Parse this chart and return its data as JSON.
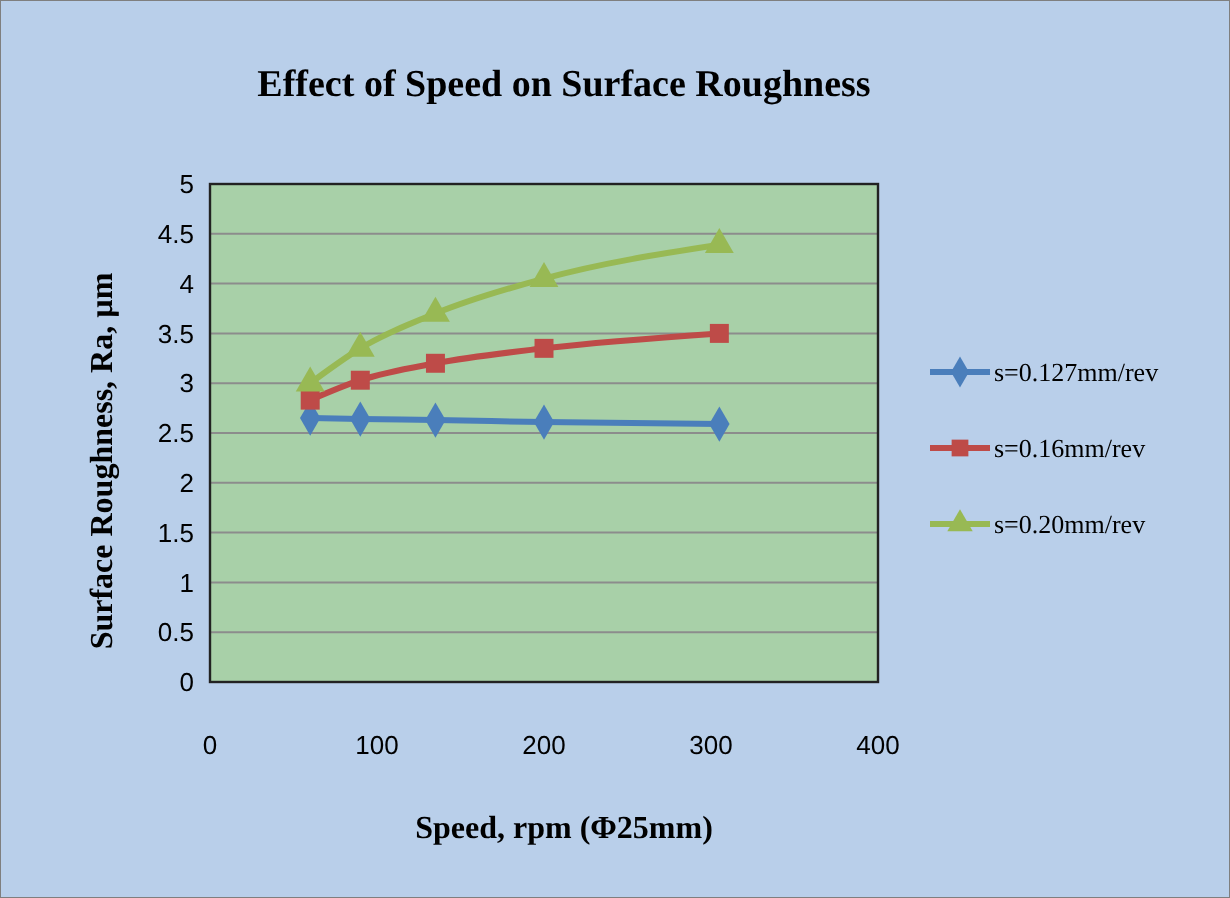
{
  "chart_data": {
    "type": "line",
    "title": "Effect of Speed on Surface Roughness",
    "xlabel": "Speed, rpm (Φ25mm)",
    "ylabel": "Surface Roughness, Ra, µm",
    "x": [
      60,
      90,
      135,
      200,
      305
    ],
    "series": [
      {
        "name": "s=0.127mm/rev",
        "color": "#4a7ebb",
        "marker": "diamond",
        "values": [
          2.65,
          2.64,
          2.63,
          2.61,
          2.59
        ]
      },
      {
        "name": "s=0.16mm/rev",
        "color": "#be4b48",
        "marker": "square",
        "values": [
          2.83,
          3.03,
          3.2,
          3.35,
          3.5
        ]
      },
      {
        "name": "s=0.20mm/rev",
        "color": "#98b954",
        "marker": "triangle",
        "values": [
          3.0,
          3.35,
          3.7,
          4.05,
          4.39
        ]
      }
    ],
    "xlim": [
      0,
      400
    ],
    "xticks": [
      0,
      100,
      200,
      300,
      400
    ],
    "ylim": [
      0,
      5
    ],
    "yticks": [
      0,
      0.5,
      1,
      1.5,
      2,
      2.5,
      3,
      3.5,
      4,
      4.5,
      5
    ],
    "grid": "y",
    "legend": "right"
  }
}
